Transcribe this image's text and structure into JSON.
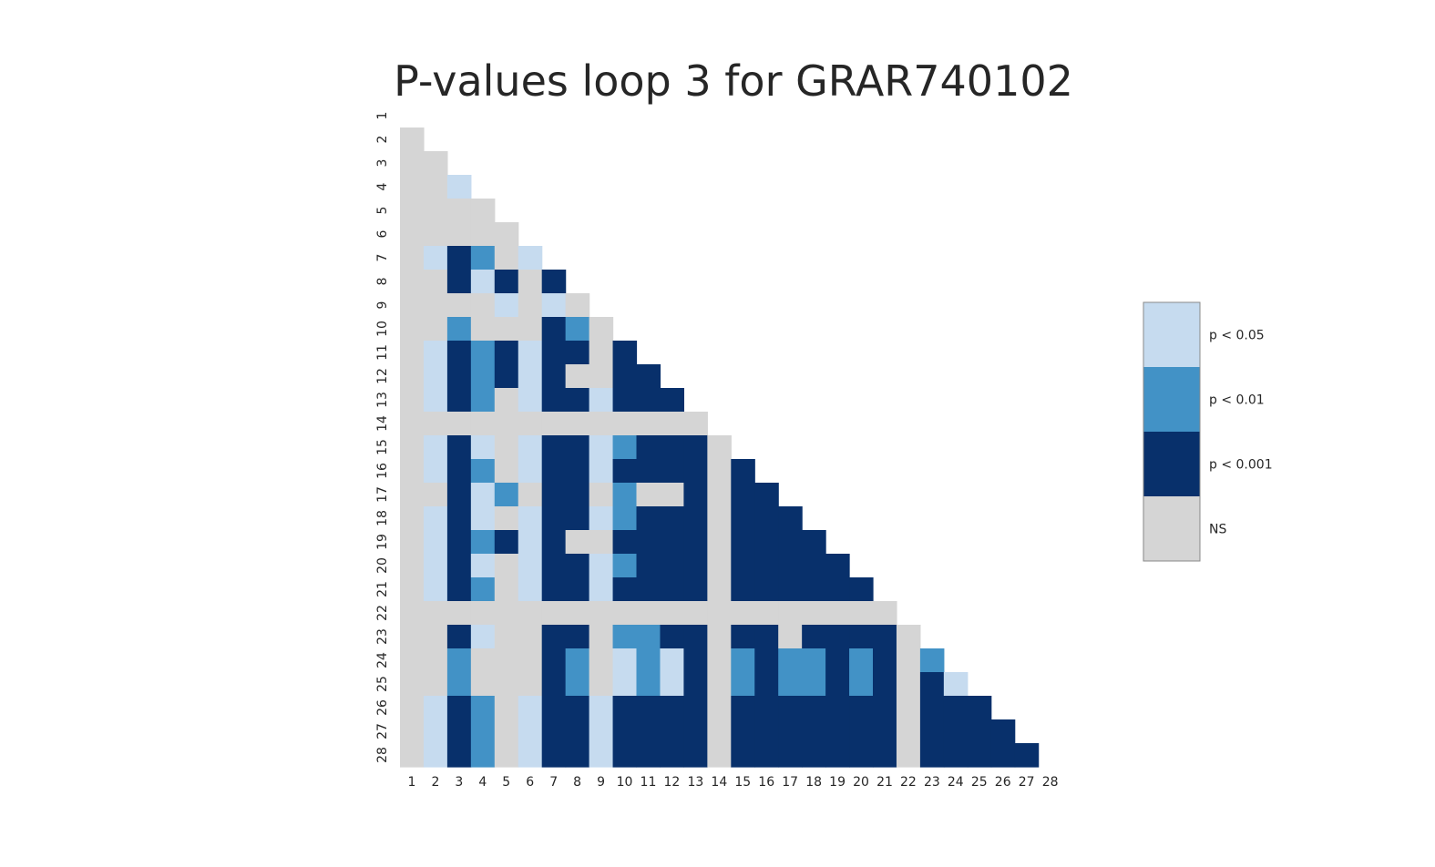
{
  "chart_data": {
    "type": "heatmap",
    "title": "P-values loop 3 for GRAR740102",
    "xlabel": "",
    "ylabel": "",
    "x_categories": [
      "1",
      "2",
      "3",
      "4",
      "5",
      "6",
      "7",
      "8",
      "9",
      "10",
      "11",
      "12",
      "13",
      "14",
      "15",
      "16",
      "17",
      "18",
      "19",
      "20",
      "21",
      "22",
      "23",
      "24",
      "25",
      "26",
      "27",
      "28"
    ],
    "y_categories": [
      "1",
      "2",
      "3",
      "4",
      "5",
      "6",
      "7",
      "8",
      "9",
      "10",
      "11",
      "12",
      "13",
      "14",
      "15",
      "16",
      "17",
      "18",
      "19",
      "20",
      "21",
      "22",
      "23",
      "24",
      "25",
      "26",
      "27",
      "28"
    ],
    "mask": "upper-triangle including diagonal",
    "levels": [
      "NS",
      "p < 0.001",
      "p < 0.01",
      "p < 0.05"
    ],
    "colors": {
      "NS": "#d5d5d5",
      "p < 0.001": "#08306b",
      "p < 0.01": "#4292c6",
      "p < 0.05": "#c6dbef"
    },
    "legend": {
      "position": "right",
      "entries": [
        "p < 0.05",
        "p < 0.01",
        "p < 0.001",
        "NS"
      ]
    },
    "grid": false,
    "encoding": "rows list levels for columns 1..(row-1); 0 = NS, 1 = p < 0.001, 2 = p < 0.01, 3 = p < 0.05",
    "rows": [
      [],
      [
        0
      ],
      [
        0,
        0
      ],
      [
        0,
        0,
        3
      ],
      [
        0,
        0,
        0,
        0
      ],
      [
        0,
        0,
        0,
        0,
        0
      ],
      [
        0,
        3,
        1,
        2,
        0,
        3
      ],
      [
        0,
        0,
        1,
        3,
        1,
        0,
        1
      ],
      [
        0,
        0,
        0,
        0,
        3,
        0,
        3,
        0
      ],
      [
        0,
        0,
        2,
        0,
        0,
        0,
        1,
        2,
        0
      ],
      [
        0,
        3,
        1,
        2,
        1,
        3,
        1,
        1,
        0,
        1
      ],
      [
        0,
        3,
        1,
        2,
        1,
        3,
        1,
        0,
        0,
        1,
        1
      ],
      [
        0,
        3,
        1,
        2,
        0,
        3,
        1,
        1,
        3,
        1,
        1,
        1
      ],
      [
        0,
        0,
        0,
        0,
        0,
        0,
        0,
        0,
        0,
        0,
        0,
        0,
        0
      ],
      [
        0,
        3,
        1,
        3,
        0,
        3,
        1,
        1,
        3,
        2,
        1,
        1,
        1,
        0
      ],
      [
        0,
        3,
        1,
        2,
        0,
        3,
        1,
        1,
        3,
        1,
        1,
        1,
        1,
        0,
        1
      ],
      [
        0,
        0,
        1,
        3,
        2,
        0,
        1,
        1,
        0,
        2,
        0,
        0,
        1,
        0,
        1,
        1
      ],
      [
        0,
        3,
        1,
        3,
        0,
        3,
        1,
        1,
        3,
        2,
        1,
        1,
        1,
        0,
        1,
        1,
        1
      ],
      [
        0,
        3,
        1,
        2,
        1,
        3,
        1,
        0,
        0,
        1,
        1,
        1,
        1,
        0,
        1,
        1,
        1,
        1
      ],
      [
        0,
        3,
        1,
        3,
        0,
        3,
        1,
        1,
        3,
        2,
        1,
        1,
        1,
        0,
        1,
        1,
        1,
        1,
        1
      ],
      [
        0,
        3,
        1,
        2,
        0,
        3,
        1,
        1,
        3,
        1,
        1,
        1,
        1,
        0,
        1,
        1,
        1,
        1,
        1,
        1
      ],
      [
        0,
        0,
        0,
        0,
        0,
        0,
        0,
        0,
        0,
        0,
        0,
        0,
        0,
        0,
        0,
        0,
        0,
        0,
        0,
        0,
        0
      ],
      [
        0,
        0,
        1,
        3,
        0,
        0,
        1,
        1,
        0,
        2,
        2,
        1,
        1,
        0,
        1,
        1,
        0,
        1,
        1,
        1,
        1,
        0
      ],
      [
        0,
        0,
        2,
        0,
        0,
        0,
        1,
        2,
        0,
        3,
        2,
        3,
        1,
        0,
        2,
        1,
        2,
        2,
        1,
        2,
        1,
        0,
        2
      ],
      [
        0,
        0,
        2,
        0,
        0,
        0,
        1,
        2,
        0,
        3,
        2,
        3,
        1,
        0,
        2,
        1,
        2,
        2,
        1,
        2,
        1,
        0,
        1,
        3
      ],
      [
        0,
        3,
        1,
        2,
        0,
        3,
        1,
        1,
        3,
        1,
        1,
        1,
        1,
        0,
        1,
        1,
        1,
        1,
        1,
        1,
        1,
        0,
        1,
        1,
        1
      ],
      [
        0,
        3,
        1,
        2,
        0,
        3,
        1,
        1,
        3,
        1,
        1,
        1,
        1,
        0,
        1,
        1,
        1,
        1,
        1,
        1,
        1,
        0,
        1,
        1,
        1,
        1
      ],
      [
        0,
        3,
        1,
        2,
        0,
        3,
        1,
        1,
        3,
        1,
        1,
        1,
        1,
        0,
        1,
        1,
        1,
        1,
        1,
        1,
        1,
        0,
        1,
        1,
        1,
        1,
        1
      ]
    ]
  }
}
